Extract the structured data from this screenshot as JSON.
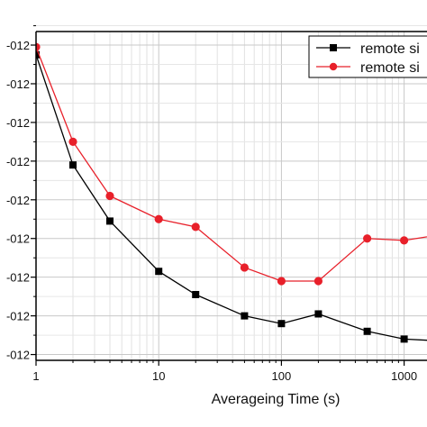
{
  "chart_data": {
    "type": "line",
    "xscale": "log",
    "xlim": [
      1,
      1700
    ],
    "ylim": [
      0.85,
      9.35
    ],
    "grid": true,
    "xlabel": "Averageing Time (s)",
    "ylabel": "",
    "x_ticks": [
      "1",
      "10",
      "100",
      "1000"
    ],
    "y_ticks": [
      "-012",
      "-012",
      "-012",
      "-012",
      "-012",
      "-012",
      "-012",
      "-012",
      "-012"
    ],
    "legend": {
      "placement": "top-right"
    },
    "series": [
      {
        "name": "remote si",
        "color": "#000000",
        "marker": "square",
        "x": [
          1,
          2,
          4,
          10,
          20,
          50,
          100,
          200,
          500,
          1000,
          2000
        ],
        "y": [
          8.75,
          5.9,
          4.45,
          3.15,
          2.55,
          2.0,
          1.8,
          2.05,
          1.6,
          1.4,
          1.35
        ]
      },
      {
        "name": "remote si",
        "color": "#e8202a",
        "marker": "circle",
        "x": [
          1,
          2,
          4,
          10,
          20,
          50,
          100,
          200,
          500,
          1000,
          2000
        ],
        "y": [
          8.95,
          6.5,
          5.1,
          4.5,
          4.3,
          3.25,
          2.9,
          2.9,
          4.0,
          3.95,
          4.1
        ]
      }
    ]
  }
}
